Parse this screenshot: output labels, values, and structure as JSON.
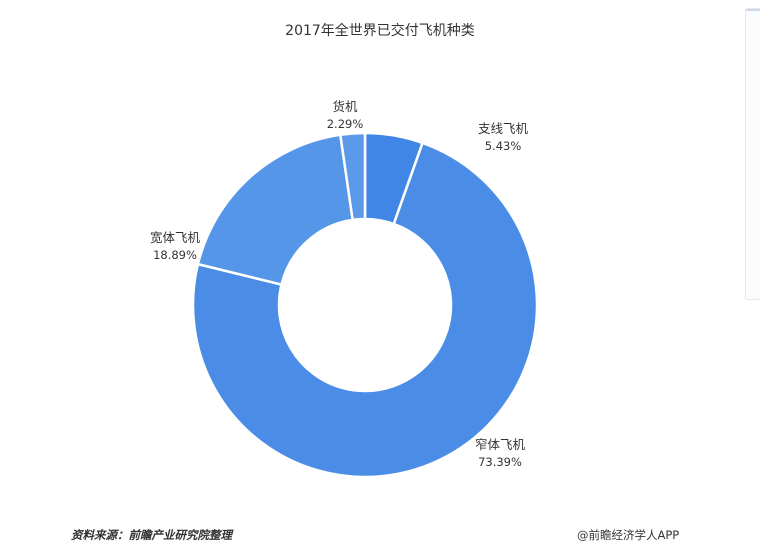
{
  "chart_data": {
    "type": "pie",
    "title": "2017年全世界已交付飞机种类",
    "categories": [
      "支线飞机",
      "窄体飞机",
      "宽体飞机",
      "货机"
    ],
    "values": [
      5.43,
      73.39,
      18.89,
      2.29
    ],
    "value_labels": [
      "5.43%",
      "73.39%",
      "18.89%",
      "2.29%"
    ],
    "colors": [
      "#3f86e6",
      "#4b8de6",
      "#5596e8",
      "#5c9ae9"
    ],
    "donut": true
  },
  "footer": {
    "source": "资料来源：前瞻产业研究院整理",
    "brand": "@前瞻经济学人APP"
  }
}
